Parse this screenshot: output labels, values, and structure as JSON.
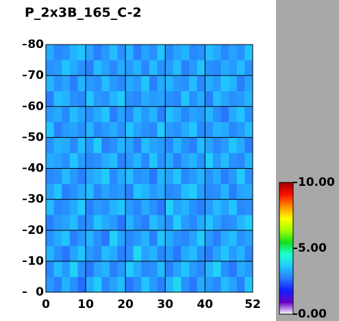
{
  "chart_data": {
    "type": "heatmap",
    "title": "P_2x3B_165_C-2",
    "xlim": [
      0,
      52
    ],
    "ylim": [
      0,
      80
    ],
    "xticks": [
      0,
      10,
      20,
      30,
      40,
      52
    ],
    "yticks": [
      0,
      10,
      20,
      30,
      40,
      50,
      60,
      70,
      80
    ],
    "grid": true,
    "clim": [
      0,
      10
    ],
    "colorbar_ticks": [
      {
        "value": 0,
        "label": "0.00"
      },
      {
        "value": 5,
        "label": "5.00"
      },
      {
        "value": 10,
        "label": "10.00"
      }
    ],
    "colorscale": [
      "#ffffff",
      "#6a00c8",
      "#1020ff",
      "#2a7aff",
      "#20c8ff",
      "#20ffd0",
      "#10e020",
      "#a0ff00",
      "#ffff00",
      "#ff9000",
      "#ff1000",
      "#a00000"
    ],
    "z": [
      [
        3.1,
        2.8,
        3.4,
        3.0,
        2.6,
        3.3,
        3.7,
        2.9,
        3.2,
        3.5,
        2.7,
        3.0,
        3.6,
        3.1,
        2.8,
        3.4,
        3.9,
        3.0,
        2.7,
        3.3,
        3.1,
        2.9,
        3.5,
        3.2,
        2.8,
        3.6
      ],
      [
        2.9,
        3.5,
        3.1,
        3.8,
        3.0,
        2.7,
        3.2,
        3.4,
        2.8,
        3.1,
        3.7,
        3.3,
        2.9,
        3.0,
        3.5,
        2.8,
        3.2,
        3.6,
        3.1,
        2.9,
        3.4,
        3.8,
        3.0,
        2.7,
        3.3,
        3.1
      ],
      [
        3.4,
        3.0,
        2.7,
        3.2,
        3.6,
        3.1,
        2.9,
        3.5,
        3.3,
        2.8,
        3.0,
        3.9,
        3.2,
        3.4,
        2.9,
        3.1,
        2.7,
        3.3,
        3.5,
        3.0,
        2.8,
        3.2,
        3.6,
        3.1,
        3.4,
        2.9
      ],
      [
        3.0,
        3.3,
        3.6,
        2.8,
        3.1,
        3.4,
        3.0,
        2.7,
        3.8,
        3.2,
        2.9,
        3.1,
        3.4,
        2.8,
        3.6,
        3.3,
        3.0,
        2.9,
        3.2,
        3.7,
        3.1,
        2.8,
        3.3,
        3.5,
        3.0,
        3.2
      ],
      [
        2.8,
        3.1,
        3.2,
        3.5,
        2.9,
        3.0,
        3.6,
        3.3,
        3.1,
        2.7,
        3.4,
        3.0,
        2.8,
        3.5,
        3.2,
        3.0,
        3.7,
        3.1,
        2.9,
        3.3,
        3.6,
        3.2,
        2.9,
        3.0,
        3.4,
        3.7
      ],
      [
        3.5,
        2.9,
        3.0,
        3.3,
        3.7,
        2.8,
        3.1,
        3.0,
        3.4,
        3.6,
        3.1,
        2.9,
        3.3,
        3.0,
        2.7,
        3.8,
        3.2,
        3.4,
        3.0,
        2.8,
        3.1,
        3.5,
        3.2,
        3.6,
        2.9,
        3.0
      ],
      [
        3.2,
        3.6,
        2.8,
        3.0,
        3.3,
        3.5,
        2.9,
        3.2,
        3.0,
        3.1,
        2.8,
        3.6,
        3.4,
        3.1,
        3.3,
        2.9,
        3.0,
        3.5,
        3.7,
        3.1,
        2.9,
        3.0,
        3.4,
        2.8,
        3.2,
        3.3
      ],
      [
        2.9,
        3.0,
        3.5,
        3.1,
        2.8,
        3.2,
        3.4,
        3.7,
        2.9,
        3.3,
        3.5,
        3.0,
        3.1,
        2.7,
        3.4,
        3.2,
        3.6,
        2.9,
        3.1,
        3.4,
        3.0,
        3.3,
        2.8,
        3.1,
        3.7,
        3.0
      ],
      [
        3.3,
        3.2,
        3.0,
        3.6,
        3.1,
        2.9,
        3.0,
        3.3,
        3.5,
        2.8,
        3.1,
        3.4,
        2.9,
        3.6,
        3.0,
        3.3,
        2.8,
        3.2,
        3.4,
        3.0,
        3.7,
        3.1,
        3.5,
        3.0,
        2.9,
        3.4
      ],
      [
        3.0,
        3.4,
        3.3,
        2.9,
        3.5,
        3.1,
        3.7,
        2.8,
        3.0,
        3.4,
        3.2,
        2.8,
        3.5,
        3.2,
        3.1,
        2.9,
        3.4,
        3.0,
        2.8,
        3.5,
        3.2,
        2.9,
        3.1,
        3.6,
        3.3,
        2.8
      ],
      [
        3.6,
        2.8,
        3.1,
        3.2,
        3.0,
        3.4,
        2.9,
        3.1,
        3.3,
        3.0,
        3.6,
        3.2,
        3.0,
        2.9,
        3.7,
        3.1,
        3.0,
        3.3,
        3.6,
        2.9,
        3.0,
        3.4,
        3.3,
        2.9,
        3.1,
        3.5
      ],
      [
        3.1,
        3.3,
        2.9,
        3.5,
        3.2,
        3.0,
        3.3,
        3.6,
        2.8,
        3.2,
        2.9,
        3.5,
        3.1,
        3.4,
        2.8,
        3.5,
        3.3,
        2.9,
        3.2,
        3.1,
        3.4,
        3.0,
        2.7,
        3.3,
        3.6,
        3.0
      ],
      [
        2.8,
        3.5,
        3.4,
        3.0,
        2.9,
        3.6,
        3.1,
        3.0,
        3.4,
        3.7,
        3.0,
        2.9,
        3.3,
        3.1,
        3.2,
        3.0,
        2.9,
        3.6,
        3.0,
        3.3,
        2.8,
        3.5,
        3.2,
        3.0,
        3.1,
        3.4
      ],
      [
        3.4,
        3.0,
        3.2,
        2.8,
        3.4,
        3.1,
        3.0,
        3.5,
        3.1,
        2.9,
        3.3,
        3.1,
        3.6,
        2.8,
        3.3,
        3.4,
        3.1,
        3.0,
        3.5,
        2.9,
        3.3,
        3.1,
        3.6,
        3.4,
        2.8,
        3.2
      ],
      [
        3.0,
        3.1,
        3.6,
        3.3,
        3.0,
        2.8,
        3.5,
        3.2,
        2.9,
        3.3,
        3.1,
        3.4,
        2.9,
        3.5,
        3.0,
        3.1,
        3.5,
        2.8,
        3.1,
        3.6,
        3.0,
        2.9,
        3.3,
        3.1,
        3.5,
        3.0
      ],
      [
        3.3,
        2.9,
        3.0,
        3.4,
        3.6,
        3.2,
        2.8,
        3.1,
        3.5,
        3.0,
        3.4,
        2.8,
        3.2,
        3.0,
        3.6,
        2.9,
        3.2,
        3.4,
        2.9,
        3.0,
        3.5,
        3.3,
        2.9,
        3.2,
        3.0,
        3.6
      ]
    ]
  }
}
